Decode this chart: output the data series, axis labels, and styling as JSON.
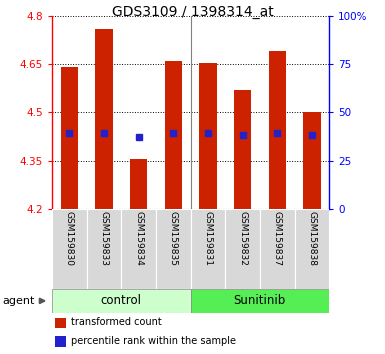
{
  "title": "GDS3109 / 1398314_at",
  "samples": [
    "GSM159830",
    "GSM159833",
    "GSM159834",
    "GSM159835",
    "GSM159831",
    "GSM159832",
    "GSM159837",
    "GSM159838"
  ],
  "bar_values": [
    4.64,
    4.76,
    4.355,
    4.66,
    4.655,
    4.57,
    4.69,
    4.5
  ],
  "percentile_values": [
    4.435,
    4.435,
    4.422,
    4.435,
    4.435,
    4.43,
    4.435,
    4.43
  ],
  "bar_color": "#cc2200",
  "percentile_color": "#2222cc",
  "ymin": 4.2,
  "ymax": 4.8,
  "yticks_left": [
    4.2,
    4.35,
    4.5,
    4.65,
    4.8
  ],
  "yticks_right": [
    0,
    25,
    50,
    75,
    100
  ],
  "ytick_right_labels": [
    "0",
    "25",
    "50",
    "75",
    "100%"
  ],
  "groups": [
    {
      "label": "control",
      "indices": [
        0,
        1,
        2,
        3
      ],
      "color": "#ccffcc"
    },
    {
      "label": "Sunitinib",
      "indices": [
        4,
        5,
        6,
        7
      ],
      "color": "#55ee55"
    }
  ],
  "agent_label": "agent",
  "legend_items": [
    {
      "color": "#cc2200",
      "label": "transformed count"
    },
    {
      "color": "#2222cc",
      "label": "percentile rank within the sample"
    }
  ],
  "bar_width": 0.5,
  "plot_bg_color": "#ffffff",
  "separators": [
    3.5
  ]
}
